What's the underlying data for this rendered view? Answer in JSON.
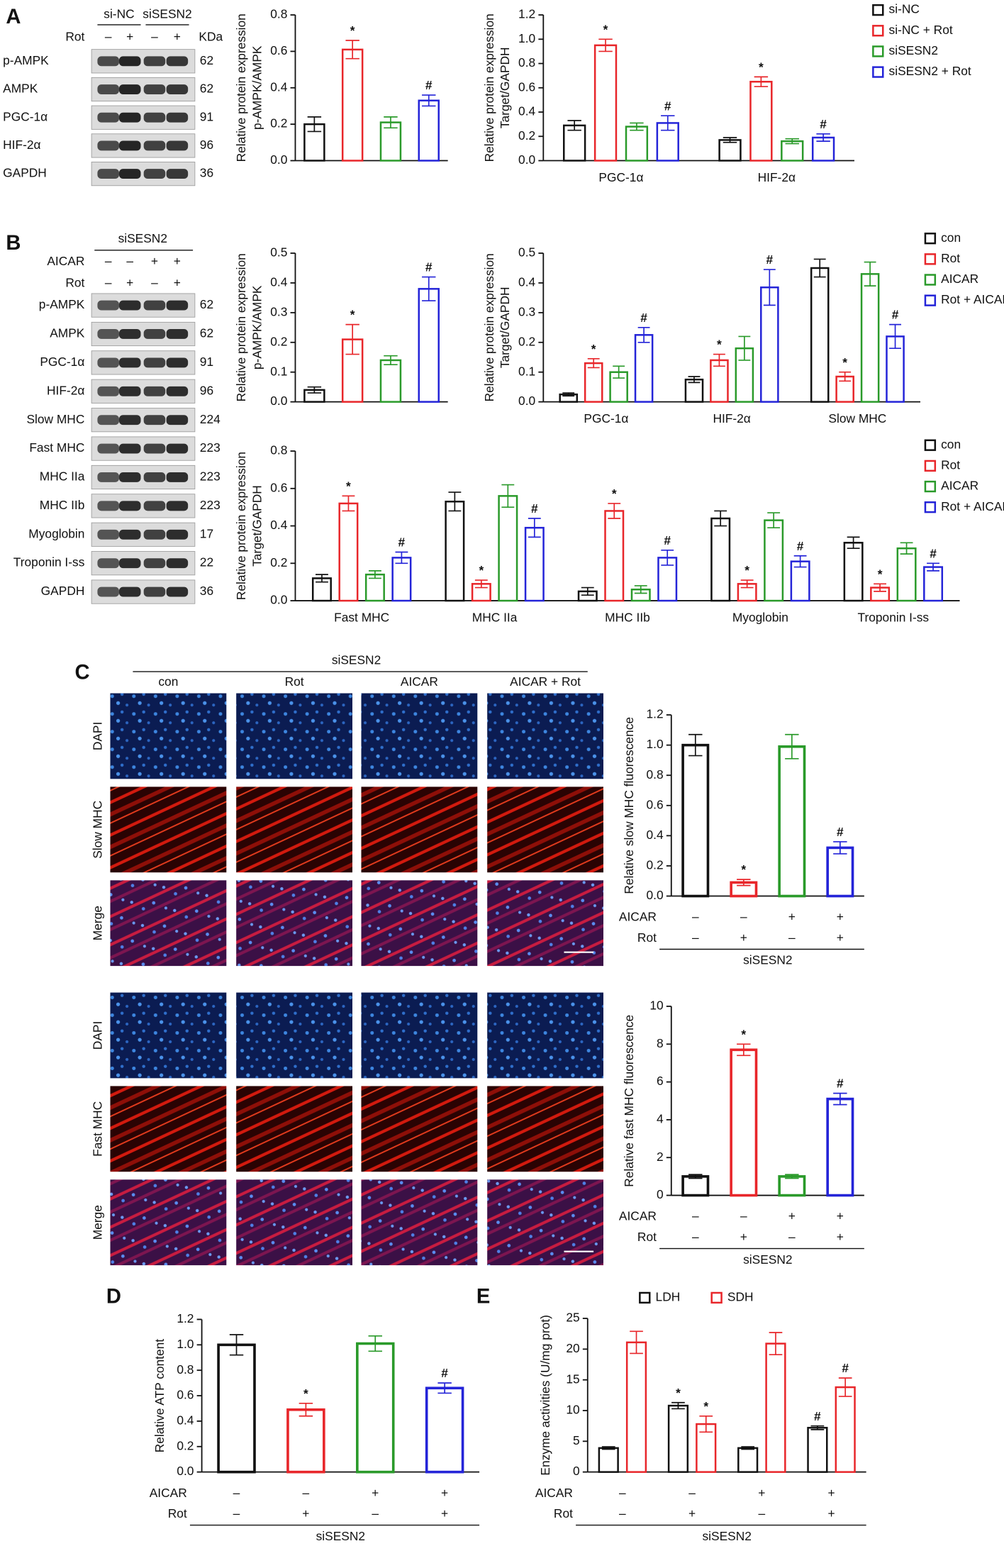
{
  "panel_labels": [
    "A",
    "B",
    "C",
    "D",
    "E"
  ],
  "blot_a": {
    "groups": [
      "si-NC",
      "siSESN2"
    ],
    "treatment": "Rot",
    "signs": [
      "–",
      "+",
      "–",
      "+"
    ],
    "unit": "KDa",
    "rows": [
      {
        "name": "p-AMPK",
        "kda": 62
      },
      {
        "name": "AMPK",
        "kda": 62
      },
      {
        "name": "PGC-1α",
        "kda": 91
      },
      {
        "name": "HIF-2α",
        "kda": 96
      },
      {
        "name": "GAPDH",
        "kda": 36
      }
    ]
  },
  "blot_b": {
    "group": "siSESN2",
    "treatments": [
      {
        "name": "AICAR",
        "signs": [
          "–",
          "–",
          "+",
          "+"
        ]
      },
      {
        "name": "Rot",
        "signs": [
          "–",
          "+",
          "–",
          "+"
        ]
      }
    ],
    "rows": [
      {
        "name": "p-AMPK",
        "kda": 62
      },
      {
        "name": "AMPK",
        "kda": 62
      },
      {
        "name": "PGC-1α",
        "kda": 91
      },
      {
        "name": "HIF-2α",
        "kda": 96
      },
      {
        "name": "Slow MHC",
        "kda": 224
      },
      {
        "name": "Fast MHC",
        "kda": 223
      },
      {
        "name": "MHC IIa",
        "kda": 223
      },
      {
        "name": "MHC IIb",
        "kda": 223
      },
      {
        "name": "Myoglobin",
        "kda": 17
      },
      {
        "name": "Troponin I-ss",
        "kda": 22
      },
      {
        "name": "GAPDH",
        "kda": 36
      }
    ]
  },
  "images_c": {
    "group": "siSESN2",
    "columns": [
      "con",
      "Rot",
      "AICAR",
      "AICAR + Rot"
    ],
    "rows_top": [
      "DAPI",
      "Slow MHC",
      "Merge"
    ],
    "rows_bottom": [
      "DAPI",
      "Fast MHC",
      "Merge"
    ]
  },
  "chart_data": [
    {
      "type": "bar",
      "ylabel": [
        "Relative protein expression",
        "p-AMPK/AMPK"
      ],
      "ylim": [
        0,
        0.8
      ],
      "yticks": [
        {
          "value": 0,
          "label": "0.0"
        },
        0.2,
        0.4,
        0.6,
        0.8
      ],
      "values": [
        0.2,
        0.61,
        0.21,
        0.33
      ],
      "errors": [
        0.04,
        0.05,
        0.03,
        0.03
      ],
      "colors": [
        "#111111",
        "#e8262a",
        "#2a9a2a",
        "#2424d8"
      ],
      "annotations": [
        null,
        "*",
        null,
        "#"
      ]
    },
    {
      "type": "bar",
      "ylabel": [
        "Relative protein expression",
        "Target/GAPDH"
      ],
      "ylim": [
        0,
        1.2
      ],
      "yticks": [
        {
          "value": 0,
          "label": "0.0"
        },
        0.2,
        0.4,
        0.6,
        0.8,
        {
          "value": 1,
          "label": "1.0"
        },
        1.2
      ],
      "categories": [
        "PGC-1α",
        "HIF-2α"
      ],
      "legend": "right",
      "series": [
        {
          "name": "si-NC",
          "color": "#111111",
          "values": [
            0.29,
            0.17
          ],
          "errors": [
            0.04,
            0.02
          ],
          "annotations": [
            null,
            null
          ]
        },
        {
          "name": "si-NC + Rot",
          "color": "#e8262a",
          "values": [
            0.95,
            0.65
          ],
          "errors": [
            0.05,
            0.04
          ],
          "annotations": [
            "*",
            "*"
          ]
        },
        {
          "name": "siSESN2",
          "color": "#2a9a2a",
          "values": [
            0.28,
            0.16
          ],
          "errors": [
            0.03,
            0.02
          ],
          "annotations": [
            null,
            null
          ]
        },
        {
          "name": "siSESN2 + Rot",
          "color": "#2424d8",
          "values": [
            0.31,
            0.19
          ],
          "errors": [
            0.06,
            0.03
          ],
          "annotations": [
            "#",
            "#"
          ]
        }
      ]
    },
    {
      "type": "bar",
      "ylabel": [
        "Relative protein expression",
        "p-AMPK/AMPK"
      ],
      "ylim": [
        0,
        0.5
      ],
      "yticks": [
        {
          "value": 0,
          "label": "0.0"
        },
        0.1,
        0.2,
        0.3,
        0.4,
        0.5
      ],
      "values": [
        0.04,
        0.21,
        0.14,
        0.38
      ],
      "errors": [
        0.01,
        0.05,
        0.015,
        0.04
      ],
      "colors": [
        "#111111",
        "#e8262a",
        "#2a9a2a",
        "#2424d8"
      ],
      "annotations": [
        null,
        "*",
        null,
        "#"
      ]
    },
    {
      "type": "bar",
      "ylabel": [
        "Relative protein expression",
        "Target/GAPDH"
      ],
      "ylim": [
        0,
        0.5
      ],
      "yticks": [
        {
          "value": 0,
          "label": "0.0"
        },
        0.1,
        0.2,
        0.3,
        0.4,
        0.5
      ],
      "categories": [
        "PGC-1α",
        "HIF-2α",
        "Slow MHC"
      ],
      "legend": "right",
      "series": [
        {
          "name": "con",
          "color": "#111111",
          "values": [
            0.025,
            0.075,
            0.45
          ],
          "errors": [
            0.005,
            0.01,
            0.03
          ],
          "annotations": [
            null,
            null,
            null
          ]
        },
        {
          "name": "Rot",
          "color": "#e8262a",
          "values": [
            0.13,
            0.14,
            0.085
          ],
          "errors": [
            0.015,
            0.02,
            0.015
          ],
          "annotations": [
            "*",
            "*",
            "*"
          ]
        },
        {
          "name": "AICAR",
          "color": "#2a9a2a",
          "values": [
            0.1,
            0.18,
            0.43
          ],
          "errors": [
            0.02,
            0.04,
            0.04
          ],
          "annotations": [
            null,
            null,
            null
          ]
        },
        {
          "name": "Rot + AICAR",
          "color": "#2424d8",
          "values": [
            0.225,
            0.385,
            0.22
          ],
          "errors": [
            0.025,
            0.06,
            0.04
          ],
          "annotations": [
            "#",
            "#",
            "#"
          ]
        }
      ]
    },
    {
      "type": "bar",
      "ylabel": [
        "Relative protein expression",
        "Target/GAPDH"
      ],
      "ylim": [
        0,
        0.8
      ],
      "yticks": [
        {
          "value": 0,
          "label": "0.0"
        },
        0.2,
        0.4,
        0.6,
        0.8
      ],
      "categories": [
        "Fast MHC",
        "MHC IIa",
        "MHC IIb",
        "Myoglobin",
        "Troponin I-ss"
      ],
      "legend": "right",
      "series": [
        {
          "name": "con",
          "color": "#111111",
          "values": [
            0.12,
            0.53,
            0.05,
            0.44,
            0.31
          ],
          "errors": [
            0.02,
            0.05,
            0.02,
            0.04,
            0.03
          ],
          "annotations": [
            null,
            null,
            null,
            null,
            null
          ]
        },
        {
          "name": "Rot",
          "color": "#e8262a",
          "values": [
            0.52,
            0.09,
            0.48,
            0.09,
            0.07
          ],
          "errors": [
            0.04,
            0.02,
            0.04,
            0.02,
            0.02
          ],
          "annotations": [
            "*",
            "*",
            "*",
            "*",
            "*"
          ]
        },
        {
          "name": "AICAR",
          "color": "#2a9a2a",
          "values": [
            0.14,
            0.56,
            0.06,
            0.43,
            0.28
          ],
          "errors": [
            0.02,
            0.06,
            0.02,
            0.04,
            0.03
          ],
          "annotations": [
            null,
            null,
            null,
            null,
            null
          ]
        },
        {
          "name": "Rot + AICAR",
          "color": "#2424d8",
          "values": [
            0.23,
            0.39,
            0.23,
            0.21,
            0.18
          ],
          "errors": [
            0.03,
            0.05,
            0.04,
            0.03,
            0.02
          ],
          "annotations": [
            "#",
            "#",
            "#",
            "#",
            "#"
          ]
        }
      ]
    },
    {
      "type": "bar",
      "ylabel": [
        "Relative slow MHC fluorescence"
      ],
      "ylim": [
        0,
        1.2
      ],
      "yticks": [
        {
          "value": 0,
          "label": "0.0"
        },
        0.2,
        0.4,
        0.6,
        0.8,
        {
          "value": 1,
          "label": "1.0"
        },
        1.2
      ],
      "values": [
        1.0,
        0.09,
        0.99,
        0.32
      ],
      "errors": [
        0.07,
        0.02,
        0.08,
        0.04
      ],
      "colors": [
        "#111111",
        "#e8262a",
        "#2a9a2a",
        "#2424d8"
      ],
      "annotations": [
        null,
        "*",
        null,
        "#"
      ],
      "conditions": [
        {
          "name": "AICAR",
          "signs": [
            "–",
            "–",
            "+",
            "+"
          ]
        },
        {
          "name": "Rot",
          "signs": [
            "–",
            "+",
            "–",
            "+"
          ]
        }
      ],
      "group_label": "siSESN2"
    },
    {
      "type": "bar",
      "ylabel": [
        "Relative fast MHC fluorescence"
      ],
      "ylim": [
        0,
        10
      ],
      "yticks": [
        0,
        2,
        4,
        6,
        8,
        10
      ],
      "values": [
        1.0,
        7.7,
        1.0,
        5.1
      ],
      "errors": [
        0.1,
        0.3,
        0.1,
        0.3
      ],
      "colors": [
        "#111111",
        "#e8262a",
        "#2a9a2a",
        "#2424d8"
      ],
      "annotations": [
        null,
        "*",
        null,
        "#"
      ],
      "conditions": [
        {
          "name": "AICAR",
          "signs": [
            "–",
            "–",
            "+",
            "+"
          ]
        },
        {
          "name": "Rot",
          "signs": [
            "–",
            "+",
            "–",
            "+"
          ]
        }
      ],
      "group_label": "siSESN2"
    },
    {
      "type": "bar",
      "ylabel": [
        "Relative ATP content"
      ],
      "ylim": [
        0,
        1.2
      ],
      "yticks": [
        {
          "value": 0,
          "label": "0.0"
        },
        0.2,
        0.4,
        0.6,
        0.8,
        {
          "value": 1,
          "label": "1.0"
        },
        1.2
      ],
      "values": [
        1.0,
        0.49,
        1.01,
        0.66
      ],
      "errors": [
        0.08,
        0.05,
        0.06,
        0.04
      ],
      "colors": [
        "#111111",
        "#e8262a",
        "#2a9a2a",
        "#2424d8"
      ],
      "annotations": [
        null,
        "*",
        null,
        "#"
      ],
      "conditions": [
        {
          "name": "AICAR",
          "signs": [
            "–",
            "–",
            "+",
            "+"
          ]
        },
        {
          "name": "Rot",
          "signs": [
            "–",
            "+",
            "–",
            "+"
          ]
        }
      ],
      "group_label": "siSESN2"
    },
    {
      "type": "bar",
      "ylabel": [
        "Enzyme activities (U/mg prot)"
      ],
      "ylim": [
        0,
        25
      ],
      "yticks": [
        0,
        5,
        10,
        15,
        20,
        25
      ],
      "legend": "top",
      "series": [
        {
          "name": "LDH",
          "color": "#111111",
          "values": [
            3.9,
            10.8,
            3.9,
            7.2
          ],
          "errors": [
            0.2,
            0.5,
            0.2,
            0.3
          ],
          "annotations": [
            null,
            "*",
            null,
            "#"
          ]
        },
        {
          "name": "SDH",
          "color": "#e8262a",
          "values": [
            21.1,
            7.8,
            20.9,
            13.8
          ],
          "errors": [
            1.8,
            1.3,
            1.8,
            1.5
          ],
          "annotations": [
            null,
            "*",
            null,
            "#"
          ]
        }
      ],
      "conditions": [
        {
          "name": "AICAR",
          "signs": [
            "–",
            "–",
            "+",
            "+"
          ]
        },
        {
          "name": "Rot",
          "signs": [
            "–",
            "+",
            "–",
            "+"
          ]
        }
      ],
      "group_label": "siSESN2"
    }
  ]
}
